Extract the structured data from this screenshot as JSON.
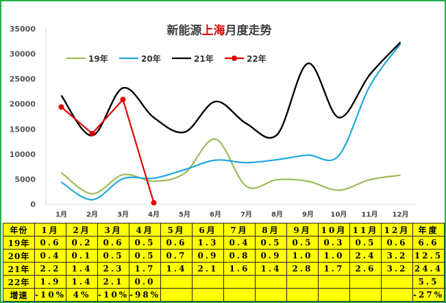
{
  "chart_data": {
    "type": "line",
    "title_parts": [
      {
        "text": "新能源",
        "color": "#404040"
      },
      {
        "text": "上海",
        "color": "#e00000"
      },
      {
        "text": "月度走势",
        "color": "#404040"
      }
    ],
    "categories": [
      "1月",
      "2月",
      "3月",
      "4月",
      "5月",
      "6月",
      "7月",
      "8月",
      "9月",
      "10月",
      "11月",
      "12月"
    ],
    "yticks": [
      0,
      5000,
      10000,
      15000,
      20000,
      25000,
      30000,
      35000
    ],
    "ylim": [
      0,
      35000
    ],
    "legend_position": "top-left",
    "series": [
      {
        "name": "19年",
        "color": "#9bbb59",
        "markers": false,
        "values": [
          6300,
          2100,
          5900,
          4600,
          6200,
          13000,
          3600,
          4900,
          4600,
          2800,
          4900,
          5800
        ]
      },
      {
        "name": "20年",
        "color": "#1ea7e1",
        "markers": false,
        "values": [
          4400,
          900,
          5100,
          5200,
          6900,
          8800,
          8300,
          8900,
          9800,
          9700,
          23500,
          32000
        ]
      },
      {
        "name": "21年",
        "color": "#000000",
        "markers": false,
        "values": [
          21700,
          13700,
          23200,
          17300,
          14400,
          20500,
          16100,
          13900,
          28100,
          17300,
          25800,
          32300
        ]
      },
      {
        "name": "22年",
        "color": "#e00000",
        "markers": true,
        "values": [
          19400,
          14100,
          20900,
          300,
          null,
          null,
          null,
          null,
          null,
          null,
          null,
          null
        ]
      }
    ]
  },
  "table": {
    "header": [
      "年份",
      "1月",
      "2月",
      "3月",
      "4月",
      "5月",
      "6月",
      "7月",
      "8月",
      "9月",
      "10月",
      "11月",
      "12月",
      "年度"
    ],
    "rows": [
      [
        "19年",
        "0.6",
        "0.2",
        "0.6",
        "0.5",
        "0.6",
        "1.3",
        "0.4",
        "0.5",
        "0.5",
        "0.3",
        "0.5",
        "0.6",
        "6.6"
      ],
      [
        "20年",
        "0.4",
        "0.1",
        "0.5",
        "0.5",
        "0.7",
        "0.9",
        "0.8",
        "0.9",
        "1.0",
        "1.0",
        "2.4",
        "3.2",
        "12.5"
      ],
      [
        "21年",
        "2.2",
        "1.4",
        "2.3",
        "1.7",
        "1.4",
        "2.1",
        "1.6",
        "1.4",
        "2.8",
        "1.7",
        "2.6",
        "3.2",
        "24.4"
      ],
      [
        "22年",
        "1.9",
        "1.4",
        "2.1",
        "0.0",
        "",
        "",
        "",
        "",
        "",
        "",
        "",
        "",
        "5.5"
      ],
      [
        "增速",
        "-10%",
        "4%",
        "-10%",
        "-98%",
        "",
        "",
        "",
        "",
        "",
        "",
        "",
        "",
        "-27%"
      ]
    ]
  }
}
